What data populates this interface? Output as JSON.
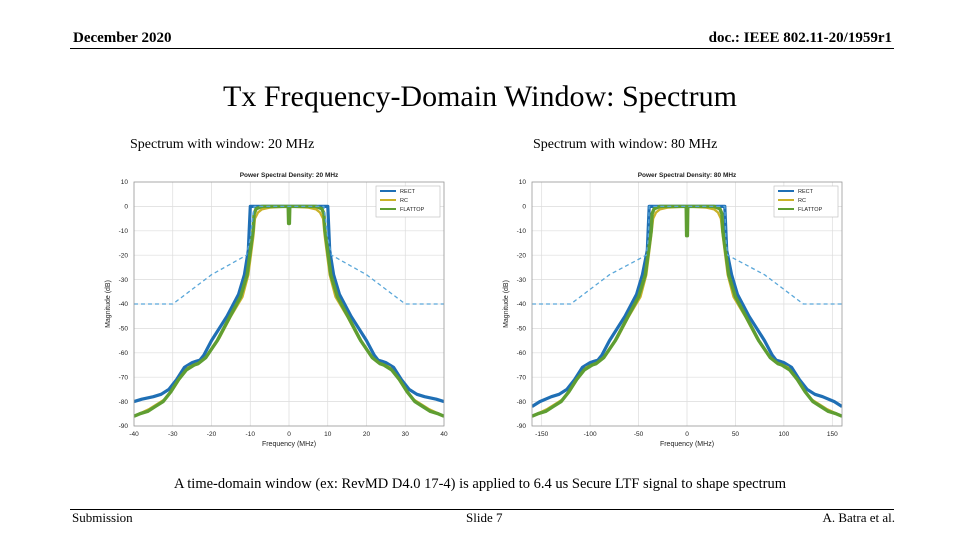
{
  "slide": {
    "date": "December 2020",
    "doc_id": "doc.: IEEE 802.11-20/1959r1",
    "title": "Tx Frequency-Domain Window: Spectrum",
    "caption_left": "Spectrum with window: 20 MHz",
    "caption_right": "Spectrum with window: 80 MHz",
    "note": "A time-domain window (ex: RevMD D4.0 17-4) is applied to 6.4 us Secure LTF signal to shape spectrum",
    "footer_left": "Submission",
    "footer_center": "Slide 7",
    "footer_right": "A. Batra et al."
  },
  "colors": {
    "rect": "#1f6fb5",
    "rc": "#c9b22a",
    "flattop": "#5f9e32",
    "mask": "#5aa7d9",
    "grid": "#dcdcdc"
  },
  "chart_data": [
    {
      "type": "line",
      "title": "Power Spectral Density: 20 MHz",
      "xlabel": "Frequency (MHz)",
      "ylabel": "Magnitude (dB)",
      "xlim": [
        -40,
        40
      ],
      "ylim": [
        -90,
        10
      ],
      "xticks": [
        -40,
        -30,
        -20,
        -10,
        0,
        10,
        20,
        30,
        40
      ],
      "yticks": [
        10,
        0,
        -10,
        -20,
        -30,
        -40,
        -50,
        -60,
        -70,
        -80,
        -90
      ],
      "grid": true,
      "legend": "top-right",
      "series": [
        {
          "name": "RECT",
          "color": "#1f6fb5",
          "width": 3.2,
          "x": [
            0,
            9,
            10,
            10.5,
            11.5,
            13,
            16,
            20,
            22,
            23,
            24,
            25,
            27,
            29,
            31,
            33,
            35,
            38,
            40
          ],
          "y": [
            0,
            0,
            0,
            -18,
            -28,
            -36,
            -45,
            -55,
            -61,
            -63,
            -63.5,
            -64,
            -66,
            -71,
            -75,
            -77,
            -78,
            -79,
            -80
          ]
        },
        {
          "name": "RC",
          "color": "#c9b22a",
          "width": 2.4,
          "x": [
            0,
            5,
            7,
            8,
            8.8,
            9.2,
            10.5,
            12,
            15,
            18,
            21,
            23,
            24,
            26,
            28,
            30,
            32,
            34,
            36,
            38,
            40
          ],
          "y": [
            0,
            -0.5,
            -1.2,
            -2.5,
            -5,
            -12,
            -28,
            -37,
            -45,
            -54,
            -61,
            -64,
            -64.5,
            -66,
            -70,
            -75,
            -79,
            -81,
            -83,
            -84.5,
            -86
          ]
        },
        {
          "name": "FLATTOP",
          "color": "#5f9e32",
          "width": 3.4,
          "x": [
            0,
            0.1,
            0.2,
            1,
            7,
            8.5,
            9,
            9.3,
            10.8,
            12.5,
            15.5,
            18.5,
            21.5,
            23.5,
            24.5,
            26.5,
            28.5,
            30.5,
            32.5,
            34.5,
            36.5,
            38.5,
            40
          ],
          "y": [
            -7,
            -7,
            0,
            0,
            0,
            -1,
            -3,
            -10,
            -28,
            -37,
            -46,
            -55,
            -62,
            -64.5,
            -65,
            -67,
            -71,
            -76,
            -80,
            -82,
            -84,
            -85,
            -86
          ]
        },
        {
          "name": "",
          "color": "#5aa7d9",
          "width": 1.3,
          "dash": "4 3",
          "x": [
            0,
            9,
            10,
            11,
            20,
            30,
            40
          ],
          "y": [
            0,
            0,
            -13,
            -20,
            -28,
            -40,
            -40
          ]
        }
      ]
    },
    {
      "type": "line",
      "title": "Power Spectral Density: 80 MHz",
      "xlabel": "Frequency (MHz)",
      "ylabel": "Magnitude (dB)",
      "xlim": [
        -160,
        160
      ],
      "ylim": [
        -90,
        10
      ],
      "xticks": [
        -150,
        -100,
        -50,
        0,
        50,
        100,
        150
      ],
      "yticks": [
        10,
        0,
        -10,
        -20,
        -30,
        -40,
        -50,
        -60,
        -70,
        -80,
        -90
      ],
      "grid": true,
      "legend": "top-right",
      "series": [
        {
          "name": "RECT",
          "color": "#1f6fb5",
          "width": 3.2,
          "x": [
            0,
            36,
            39,
            41,
            46,
            52,
            64,
            80,
            88,
            92,
            96,
            100,
            108,
            116,
            124,
            132,
            140,
            152,
            160
          ],
          "y": [
            0,
            0,
            0,
            -18,
            -28,
            -36,
            -45,
            -55,
            -61,
            -63,
            -63.5,
            -64,
            -66,
            -71,
            -75,
            -77,
            -78,
            -80,
            -82
          ]
        },
        {
          "name": "RC",
          "color": "#c9b22a",
          "width": 2.4,
          "x": [
            0,
            20,
            28,
            32,
            35,
            37,
            42,
            48,
            60,
            72,
            84,
            92,
            96,
            104,
            112,
            120,
            128,
            136,
            144,
            152,
            160
          ],
          "y": [
            0,
            -0.5,
            -1.2,
            -2.5,
            -5,
            -12,
            -28,
            -37,
            -45,
            -54,
            -61,
            -64,
            -64.5,
            -66,
            -70,
            -75,
            -79,
            -81,
            -83,
            -84.5,
            -86
          ]
        },
        {
          "name": "FLATTOP",
          "color": "#5f9e32",
          "width": 3.4,
          "x": [
            0,
            0.4,
            0.8,
            4,
            28,
            34,
            36,
            37,
            43,
            50,
            62,
            74,
            86,
            94,
            98,
            106,
            114,
            122,
            130,
            138,
            146,
            154,
            160
          ],
          "y": [
            -12,
            -12,
            0,
            0,
            0,
            -1,
            -3,
            -10,
            -28,
            -37,
            -46,
            -55,
            -62,
            -64.5,
            -65,
            -67,
            -71,
            -76,
            -80,
            -82,
            -84,
            -85,
            -86
          ]
        },
        {
          "name": "",
          "color": "#5aa7d9",
          "width": 1.3,
          "dash": "4 3",
          "x": [
            0,
            39,
            40,
            42,
            80,
            120,
            160
          ],
          "y": [
            0,
            0,
            -13,
            -20,
            -28,
            -40,
            -40
          ]
        }
      ]
    }
  ]
}
